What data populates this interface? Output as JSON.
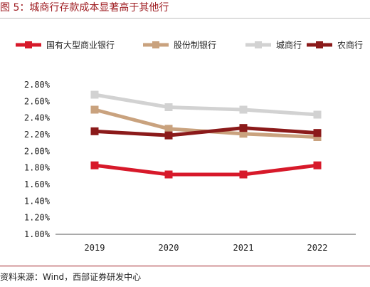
{
  "title": "图 5：城商行存款成本显著高于其他行",
  "source": "资料来源：Wind，西部证券研发中心",
  "colors": {
    "title": "#9e1b20",
    "rule": "#9e1b20"
  },
  "chart_data": {
    "type": "line",
    "categories": [
      "2019",
      "2020",
      "2021",
      "2022"
    ],
    "ylim": [
      1.0,
      2.8
    ],
    "ytick_step": 0.2,
    "ytick_labels": [
      "1.00%",
      "1.20%",
      "1.40%",
      "1.60%",
      "1.80%",
      "2.00%",
      "2.20%",
      "2.40%",
      "2.60%",
      "2.80%"
    ],
    "grid": false,
    "legend_position": "top",
    "series": [
      {
        "name": "国有大型商业银行",
        "color": "#d7192a",
        "values": [
          1.83,
          1.72,
          1.72,
          1.83
        ]
      },
      {
        "name": "股份制银行",
        "color": "#c9a27e",
        "values": [
          2.5,
          2.27,
          2.21,
          2.17
        ]
      },
      {
        "name": "城商行",
        "color": "#d2d2d2",
        "values": [
          2.68,
          2.53,
          2.5,
          2.44
        ]
      },
      {
        "name": "农商行",
        "color": "#8b1a1a",
        "values": [
          2.24,
          2.19,
          2.28,
          2.22
        ]
      }
    ]
  }
}
